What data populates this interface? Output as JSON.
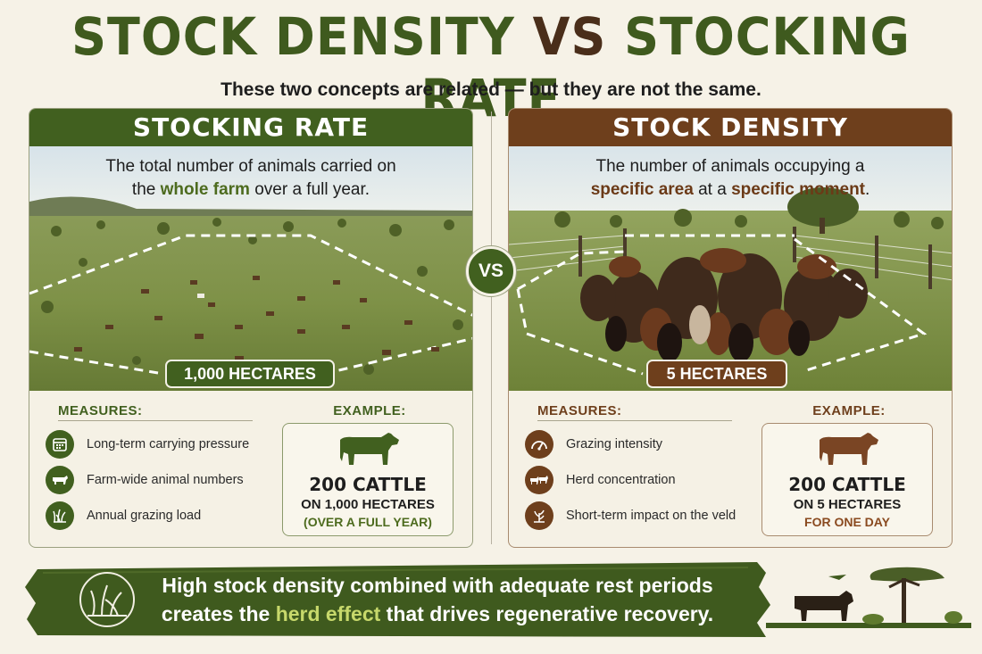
{
  "title": {
    "part1": "STOCK DENSITY",
    "vs": "VS",
    "part2": "STOCKING RATE"
  },
  "subtitle": "These two concepts are related — but they are not the same.",
  "vs_badge": "VS",
  "left": {
    "heading": "STOCKING RATE",
    "desc_line1": "The total number of animals carried on",
    "desc_pre": "the ",
    "desc_hl": "whole farm",
    "desc_post": " over a full year.",
    "area_label": "1,000 HECTARES",
    "measures_title": "MEASURES:",
    "measures": [
      {
        "icon": "calendar-icon",
        "label": "Long-term carrying pressure"
      },
      {
        "icon": "cow-icon",
        "label": "Farm-wide animal numbers"
      },
      {
        "icon": "grass-icon",
        "label": "Annual grazing load"
      }
    ],
    "example_title": "EXAMPLE:",
    "example_main": "200 CATTLE",
    "example_sub": "ON 1,000 HECTARES",
    "example_note": "(OVER A FULL YEAR)",
    "accent": "#41601f"
  },
  "right": {
    "heading": "STOCK DENSITY",
    "desc_line1": "The number of animals occupying a",
    "desc_hl1": "specific area",
    "desc_mid": " at a ",
    "desc_hl2": "specific moment",
    "desc_post": ".",
    "area_label": "5 HECTARES",
    "measures_title": "MEASURES:",
    "measures": [
      {
        "icon": "gauge-icon",
        "label": "Grazing intensity"
      },
      {
        "icon": "herd-icon",
        "label": "Herd concentration"
      },
      {
        "icon": "plant-icon",
        "label": "Short-term impact on the veld"
      }
    ],
    "example_title": "EXAMPLE:",
    "example_main": "200 CATTLE",
    "example_sub": "ON 5 HECTARES",
    "example_note": "FOR ONE DAY",
    "accent": "#6e3f1c"
  },
  "banner": {
    "line1": "High stock density combined with adequate rest periods",
    "line2_pre": "creates the ",
    "line2_hl": "herd effect",
    "line2_post": " that drives regenerative recovery."
  }
}
